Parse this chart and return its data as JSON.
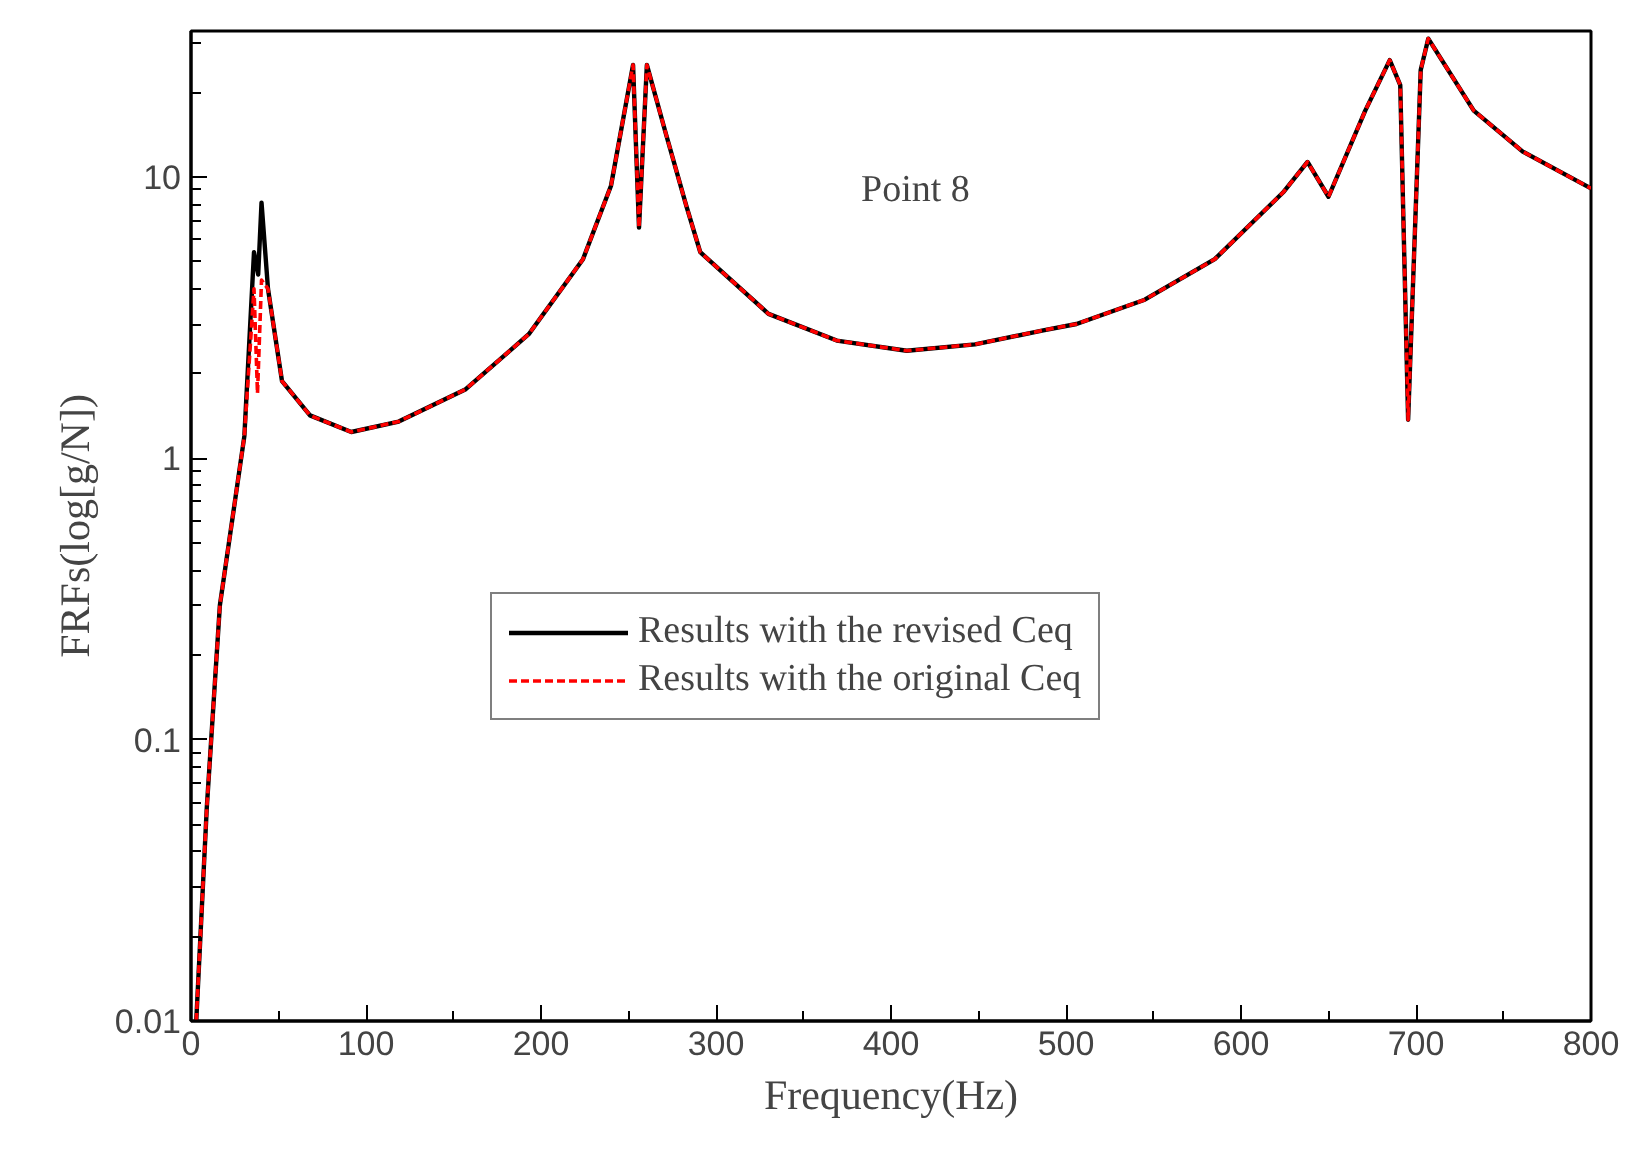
{
  "chart_data": {
    "type": "line",
    "xlabel": "Frequency(Hz)",
    "ylabel": "FRFs(log[g/N])",
    "annotations": [
      "Point 8"
    ],
    "log": "y",
    "grid": false,
    "legend": "center",
    "marker": "none",
    "xlim": [
      0,
      800
    ],
    "ylim": [
      0.01,
      33
    ],
    "xticks": [
      0,
      100,
      200,
      300,
      400,
      500,
      600,
      700,
      800
    ],
    "yticks": [
      0.01,
      0.1,
      1,
      10
    ],
    "series": [
      {
        "name": "Results with the revised Ceq",
        "color": "#000000",
        "line_style": "solid",
        "x": [
          3,
          9,
          16.5,
          30.5,
          36,
          38.4,
          40.3,
          44,
          52,
          68,
          91.6,
          118.7,
          157,
          193,
          224,
          240,
          252.6,
          256,
          260.5,
          271,
          283,
          291,
          330,
          369,
          409,
          448,
          487,
          506,
          545,
          585,
          624,
          638,
          650,
          671,
          685,
          691,
          695.5,
          702.7,
          707,
          733,
          761,
          800
        ],
        "values": [
          0.01,
          0.057,
          0.3,
          1.2,
          5.4,
          4.5,
          8.1,
          4.0,
          1.88,
          1.42,
          1.24,
          1.35,
          1.76,
          2.76,
          5.1,
          9.3,
          25,
          6.6,
          25,
          14.5,
          7.9,
          5.4,
          3.26,
          2.62,
          2.41,
          2.54,
          2.85,
          3.0,
          3.66,
          5.1,
          8.8,
          11.3,
          8.5,
          17.2,
          26,
          21.2,
          1.37,
          24,
          31,
          17.2,
          12.3,
          9.1
        ]
      },
      {
        "name": "Results with the original Ceq",
        "color": "#ff0000",
        "line_style": "dashed",
        "x": [
          3,
          9,
          16.5,
          30.5,
          36,
          38,
          40.3,
          44,
          52,
          68,
          91.6,
          118.7,
          157,
          193,
          224,
          240,
          252.6,
          256,
          260.5,
          271,
          283,
          291,
          330,
          369,
          409,
          448,
          487,
          506,
          545,
          585,
          624,
          638,
          650,
          671,
          685,
          691,
          695.5,
          702.7,
          707,
          733,
          761,
          800
        ],
        "values": [
          0.01,
          0.057,
          0.3,
          1.2,
          4.0,
          1.7,
          4.3,
          4.0,
          1.88,
          1.42,
          1.24,
          1.35,
          1.76,
          2.76,
          5.1,
          9.3,
          25,
          6.6,
          25,
          14.5,
          7.9,
          5.4,
          3.26,
          2.62,
          2.41,
          2.54,
          2.85,
          3.0,
          3.66,
          5.1,
          8.8,
          11.3,
          8.5,
          17.2,
          26,
          21.2,
          1.37,
          24,
          31,
          17.2,
          12.3,
          9.1
        ]
      }
    ]
  }
}
